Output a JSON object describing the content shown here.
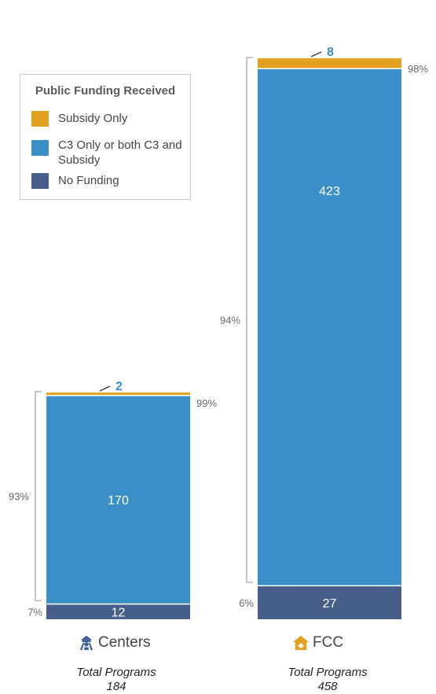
{
  "legend": {
    "title": "Public Funding Received",
    "items": [
      {
        "label": "Subsidy Only",
        "color": "#e3a11f"
      },
      {
        "label": "C3 Only or both C3 and Subsidy",
        "color": "#3a8fc8"
      },
      {
        "label": "No Funding",
        "color": "#475d8a"
      }
    ]
  },
  "chart_data": {
    "type": "bar",
    "stacked": true,
    "categories": [
      "Centers",
      "FCC"
    ],
    "series": [
      {
        "name": "No Funding",
        "values": [
          12,
          27
        ],
        "color": "#475d8a"
      },
      {
        "name": "C3 Only or both C3 and Subsidy",
        "values": [
          170,
          423
        ],
        "color": "#3a8fc8"
      },
      {
        "name": "Subsidy Only",
        "values": [
          2,
          8
        ],
        "color": "#e3a11f"
      }
    ],
    "annotations": {
      "Centers": {
        "bottom_pct": "7%",
        "bracket_pct": "93%",
        "top_pct": "99%"
      },
      "FCC": {
        "bottom_pct": "6%",
        "bracket_pct": "94%",
        "top_pct": "98%"
      }
    },
    "totals": [
      184,
      458
    ]
  },
  "categories": [
    {
      "label": "Centers",
      "icon": "school-building-icon",
      "total_label": "Total Programs",
      "total": "184"
    },
    {
      "label": "FCC",
      "icon": "house-icon",
      "total_label": "Total Programs",
      "total": "458"
    }
  ]
}
